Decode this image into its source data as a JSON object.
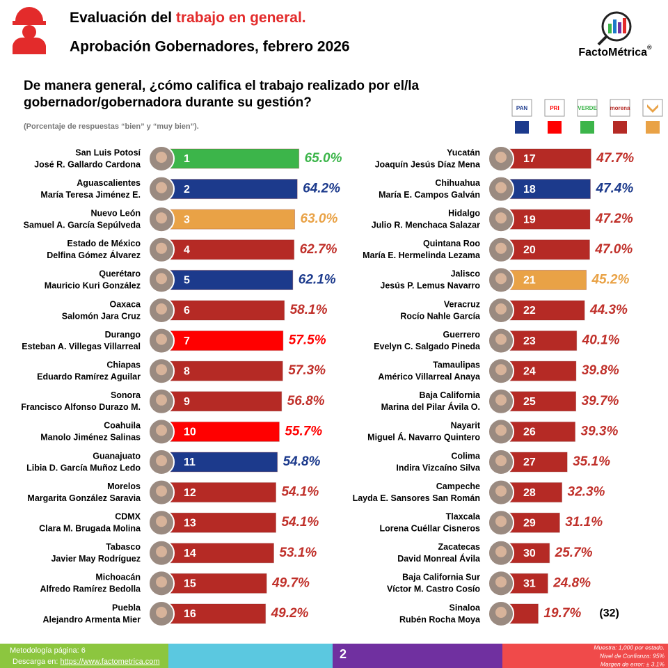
{
  "header": {
    "title_start": "Evaluación del",
    "title_highlight": "trabajo en general.",
    "subtitle": "Aprobación Gobernadores, febrero 2026",
    "brand": "FactoMétrica",
    "brand_mark": "®"
  },
  "chart_data": {
    "type": "bar",
    "orientation": "horizontal",
    "title": "De manera general, ¿cómo califica el trabajo realizado por el/la gobernador/gobernadora durante su gestión?",
    "note": "(Porcentaje de respuestas “bien” y “muy bien”).",
    "categories": [
      "San Luis Potosí",
      "Aguascalientes",
      "Nuevo León",
      "Estado de México",
      "Querétaro",
      "Oaxaca",
      "Durango",
      "Chiapas",
      "Sonora",
      "Coahuila",
      "Guanajuato",
      "Morelos",
      "CDMX",
      "Tabasco",
      "Michoacán",
      "Puebla",
      "Yucatán",
      "Chihuahua",
      "Hidalgo",
      "Quintana Roo",
      "Jalisco",
      "Veracruz",
      "Guerrero",
      "Tamaulipas",
      "Baja California",
      "Nayarit",
      "Colima",
      "Campeche",
      "Tlaxcala",
      "Zacatecas",
      "Baja California Sur",
      "Sinaloa"
    ],
    "governors": [
      "José R. Gallardo Cardona",
      "María Teresa Jiménez E.",
      "Samuel A. García Sepúlveda",
      "Delfina Gómez Álvarez",
      "Mauricio Kuri González",
      "Salomón Jara Cruz",
      "Esteban A. Villegas Villarreal",
      "Eduardo Ramírez Aguilar",
      "Francisco Alfonso Durazo M.",
      "Manolo Jiménez Salinas",
      "Libia D. García Muñoz Ledo",
      "Margarita González Saravia",
      "Clara M. Brugada Molina",
      "Javier May Rodríguez",
      "Alfredo Ramírez Bedolla",
      "Alejandro Armenta Mier",
      "Joaquín Jesús Díaz Mena",
      "María E. Campos Galván",
      "Julio R. Menchaca Salazar",
      "María E. Hermelinda Lezama",
      "Jesús P. Lemus Navarro",
      "Rocío Nahle García",
      "Evelyn C. Salgado Pineda",
      "Américo Villarreal Anaya",
      "Marina del Pilar Ávila O.",
      "Miguel Á. Navarro Quintero",
      "Indira Vizcaíno Silva",
      "Layda E. Sansores San Román",
      "Lorena Cuéllar Cisneros",
      "David Monreal Ávila",
      "Víctor M. Castro Cosío",
      "Rubén Rocha Moya"
    ],
    "ranks": [
      1,
      2,
      3,
      4,
      5,
      6,
      7,
      8,
      9,
      10,
      11,
      12,
      13,
      14,
      15,
      16,
      17,
      18,
      19,
      20,
      21,
      22,
      23,
      24,
      25,
      26,
      27,
      28,
      29,
      30,
      31,
      {
        "value": 32,
        "label": "(32)"
      }
    ],
    "values": [
      65.0,
      64.2,
      63.0,
      62.7,
      62.1,
      58.1,
      57.5,
      57.3,
      56.8,
      55.7,
      54.8,
      54.1,
      54.1,
      53.1,
      49.7,
      49.2,
      47.7,
      47.4,
      47.2,
      47.0,
      45.2,
      44.3,
      40.1,
      39.8,
      39.7,
      39.3,
      35.1,
      32.3,
      31.1,
      25.7,
      24.8,
      19.7
    ],
    "value_labels": [
      "65.0%",
      "64.2%",
      "63.0%",
      "62.7%",
      "62.1%",
      "58.1%",
      "57.5%",
      "57.3%",
      "56.8%",
      "55.7%",
      "54.8%",
      "54.1%",
      "54.1%",
      "53.1%",
      "49.7%",
      "49.2%",
      "47.7%",
      "47.4%",
      "47.2%",
      "47.0%",
      "45.2%",
      "44.3%",
      "40.1%",
      "39.8%",
      "39.7%",
      "39.3%",
      "35.1%",
      "32.3%",
      "31.1%",
      "25.7%",
      "24.8%",
      "19.7%"
    ],
    "colors": [
      "#3cb54a",
      "#1c3a8c",
      "#e9a246",
      "#b52a25",
      "#1c3a8c",
      "#b52a25",
      "#ff0000",
      "#b52a25",
      "#b52a25",
      "#ff0000",
      "#1c3a8c",
      "#b52a25",
      "#b52a25",
      "#b52a25",
      "#b52a25",
      "#b52a25",
      "#b52a25",
      "#1c3a8c",
      "#b52a25",
      "#b52a25",
      "#e9a246",
      "#b52a25",
      "#b52a25",
      "#b52a25",
      "#b52a25",
      "#b52a25",
      "#b52a25",
      "#b52a25",
      "#b52a25",
      "#b52a25",
      "#b52a25",
      "#b52a25"
    ],
    "legend": [
      {
        "name": "PAN",
        "color": "#1c3a8c"
      },
      {
        "name": "PRI",
        "color": "#ff0000"
      },
      {
        "name": "VERDE",
        "color": "#3cb54a"
      },
      {
        "name": "morena",
        "color": "#b52a25"
      },
      {
        "name": null,
        "color": "#e9a246"
      }
    ]
  },
  "footer": {
    "methodology": "Metodología página: 6",
    "download": "Descarga en:",
    "url": "https://www.factometrica.com",
    "page": "2",
    "sample": "Muestra: 1,000 por estado.",
    "confidence": "Nivel de Confianza: 95%",
    "error": "Margen de error: ± 3.1%"
  }
}
